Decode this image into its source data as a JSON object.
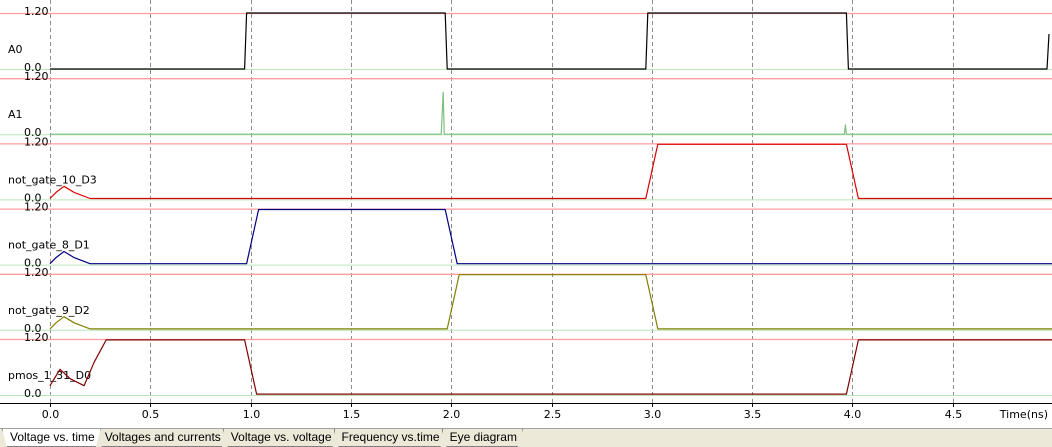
{
  "chart_data": {
    "type": "line",
    "xlabel": "Time(ns)",
    "xlim": [
      0,
      5.0
    ],
    "x_ticks": [
      "0.0",
      "0.5",
      "1.0",
      "1.5",
      "2.0",
      "2.5",
      "3.0",
      "3.5",
      "4.0",
      "4.5"
    ],
    "high_label": "1.20",
    "low_label": "0.0",
    "grid": true,
    "series": [
      {
        "name": "A0",
        "color": "#000000",
        "points": [
          [
            0,
            0
          ],
          [
            0.97,
            0
          ],
          [
            0.98,
            1.2
          ],
          [
            1.97,
            1.2
          ],
          [
            1.98,
            0
          ],
          [
            2.97,
            0
          ],
          [
            2.98,
            1.2
          ],
          [
            3.97,
            1.2
          ],
          [
            3.98,
            0
          ],
          [
            4.97,
            0
          ],
          [
            4.98,
            0.75
          ]
        ]
      },
      {
        "name": "A1",
        "color": "#7fbf7f",
        "points": [
          [
            0,
            0
          ],
          [
            1.95,
            0
          ],
          [
            1.96,
            0.9
          ],
          [
            1.965,
            0
          ],
          [
            3.96,
            0
          ],
          [
            3.965,
            0.2
          ],
          [
            3.97,
            0
          ],
          [
            5.0,
            0
          ]
        ]
      },
      {
        "name": "not_gate_10_D3",
        "color": "#dd0000",
        "points": [
          [
            0,
            0.02
          ],
          [
            0.03,
            0.15
          ],
          [
            0.07,
            0.28
          ],
          [
            0.12,
            0.15
          ],
          [
            0.2,
            0.02
          ],
          [
            2.97,
            0.02
          ],
          [
            3.0,
            0.6
          ],
          [
            3.03,
            1.18
          ],
          [
            3.97,
            1.18
          ],
          [
            4.0,
            0.6
          ],
          [
            4.03,
            0.02
          ],
          [
            5.0,
            0.02
          ]
        ]
      },
      {
        "name": "not_gate_8_D1",
        "color": "#000080",
        "points": [
          [
            0,
            0.02
          ],
          [
            0.03,
            0.15
          ],
          [
            0.07,
            0.28
          ],
          [
            0.12,
            0.15
          ],
          [
            0.2,
            0.02
          ],
          [
            0.98,
            0.02
          ],
          [
            1.01,
            0.6
          ],
          [
            1.04,
            1.18
          ],
          [
            1.97,
            1.18
          ],
          [
            2.0,
            0.6
          ],
          [
            2.03,
            0.02
          ],
          [
            5.0,
            0.02
          ]
        ]
      },
      {
        "name": "not_gate_9_D2",
        "color": "#808000",
        "points": [
          [
            0,
            0.02
          ],
          [
            0.03,
            0.15
          ],
          [
            0.07,
            0.28
          ],
          [
            0.12,
            0.15
          ],
          [
            0.2,
            0.02
          ],
          [
            1.98,
            0.02
          ],
          [
            2.01,
            0.6
          ],
          [
            2.04,
            1.18
          ],
          [
            2.97,
            1.18
          ],
          [
            3.0,
            0.6
          ],
          [
            3.03,
            0.02
          ],
          [
            5.0,
            0.02
          ]
        ]
      },
      {
        "name": "pmos_1_31_D0",
        "color": "#800000",
        "points": [
          [
            0,
            0.2
          ],
          [
            0.05,
            0.55
          ],
          [
            0.1,
            0.35
          ],
          [
            0.17,
            0.2
          ],
          [
            0.22,
            0.7
          ],
          [
            0.28,
            1.18
          ],
          [
            0.97,
            1.18
          ],
          [
            1.0,
            0.6
          ],
          [
            1.03,
            0.02
          ],
          [
            3.97,
            0.02
          ],
          [
            4.0,
            0.6
          ],
          [
            4.03,
            1.18
          ],
          [
            5.0,
            1.18
          ]
        ]
      }
    ]
  },
  "tabs": [
    {
      "label": "Voltage vs. time",
      "active": true
    },
    {
      "label": "Voltages and currents",
      "active": false
    },
    {
      "label": "Voltage vs. voltage",
      "active": false
    },
    {
      "label": "Frequency vs.time",
      "active": false
    },
    {
      "label": "Eye diagram",
      "active": false
    }
  ]
}
